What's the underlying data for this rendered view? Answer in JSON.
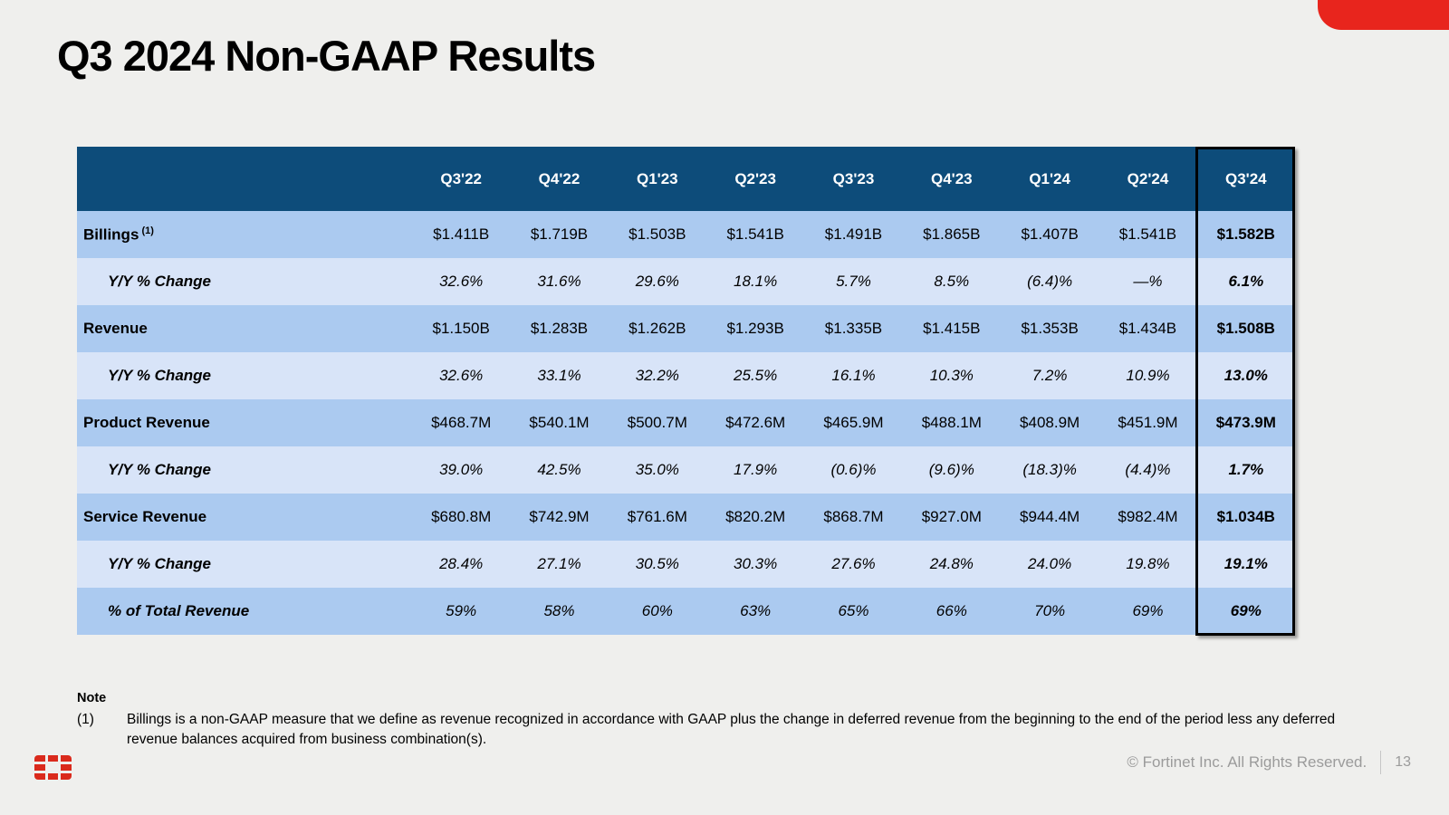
{
  "slide": {
    "title": "Q3 2024 Non-GAAP Results",
    "note_label": "Note",
    "note_ref": "(1)",
    "note_text": "Billings is a non-GAAP measure that we define as revenue recognized in accordance with GAAP plus the change in deferred revenue from the beginning to the end of the period less any deferred revenue balances acquired from business combination(s).",
    "footer": {
      "copyright": "© Fortinet Inc. All Rights Reserved.",
      "page_number": "13"
    }
  },
  "colors": {
    "header_bg": "#0d4c7a",
    "row_medium": "#abcaf0",
    "row_light": "#d8e4f8",
    "accent_red": "#e8251d",
    "logo_red": "#da2a1c",
    "highlight_border": "#000000",
    "footer_text": "#9b9b9b"
  },
  "chart_data": {
    "type": "table",
    "title": "Q3 2024 Non-GAAP Results",
    "columns": [
      "",
      "Q3'22",
      "Q4'22",
      "Q1'23",
      "Q2'23",
      "Q3'23",
      "Q4'23",
      "Q1'24",
      "Q2'24",
      "Q3'24"
    ],
    "highlighted_column": "Q3'24",
    "rows": [
      {
        "label": "Billings",
        "superscript": "(1)",
        "kind": "metric",
        "values": [
          "$1.411B",
          "$1.719B",
          "$1.503B",
          "$1.541B",
          "$1.491B",
          "$1.865B",
          "$1.407B",
          "$1.541B",
          "$1.582B"
        ]
      },
      {
        "label": "Y/Y % Change",
        "kind": "sub",
        "values": [
          "32.6%",
          "31.6%",
          "29.6%",
          "18.1%",
          "5.7%",
          "8.5%",
          "(6.4)%",
          "—%",
          "6.1%"
        ]
      },
      {
        "label": "Revenue",
        "kind": "metric",
        "values": [
          "$1.150B",
          "$1.283B",
          "$1.262B",
          "$1.293B",
          "$1.335B",
          "$1.415B",
          "$1.353B",
          "$1.434B",
          "$1.508B"
        ]
      },
      {
        "label": "Y/Y % Change",
        "kind": "sub",
        "values": [
          "32.6%",
          "33.1%",
          "32.2%",
          "25.5%",
          "16.1%",
          "10.3%",
          "7.2%",
          "10.9%",
          "13.0%"
        ]
      },
      {
        "label": "Product Revenue",
        "kind": "metric",
        "values": [
          "$468.7M",
          "$540.1M",
          "$500.7M",
          "$472.6M",
          "$465.9M",
          "$488.1M",
          "$408.9M",
          "$451.9M",
          "$473.9M"
        ]
      },
      {
        "label": "Y/Y % Change",
        "kind": "sub",
        "values": [
          "39.0%",
          "42.5%",
          "35.0%",
          "17.9%",
          "(0.6)%",
          "(9.6)%",
          "(18.3)%",
          "(4.4)%",
          "1.7%"
        ]
      },
      {
        "label": "Service Revenue",
        "kind": "metric",
        "values": [
          "$680.8M",
          "$742.9M",
          "$761.6M",
          "$820.2M",
          "$868.7M",
          "$927.0M",
          "$944.4M",
          "$982.4M",
          "$1.034B"
        ]
      },
      {
        "label": "Y/Y % Change",
        "kind": "sub",
        "values": [
          "28.4%",
          "27.1%",
          "30.5%",
          "30.3%",
          "27.6%",
          "24.8%",
          "24.0%",
          "19.8%",
          "19.1%"
        ]
      },
      {
        "label": "% of Total Revenue",
        "kind": "total",
        "values": [
          "59%",
          "58%",
          "60%",
          "63%",
          "65%",
          "66%",
          "70%",
          "69%",
          "69%"
        ]
      }
    ]
  }
}
